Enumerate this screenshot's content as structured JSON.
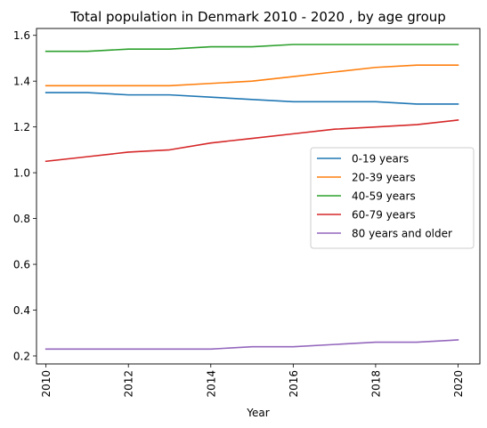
{
  "chart_data": {
    "type": "line",
    "title": "Total population in Denmark 2010 - 2020 , by age group",
    "xlabel": "Year",
    "ylabel": "",
    "x": [
      2010,
      2011,
      2012,
      2013,
      2014,
      2015,
      2016,
      2017,
      2018,
      2019,
      2020
    ],
    "xticks": [
      "2010",
      "2012",
      "2014",
      "2016",
      "2018",
      "2020"
    ],
    "yticks": [
      "0.2",
      "0.4",
      "0.6",
      "0.8",
      "1.0",
      "1.2",
      "1.4",
      "1.6"
    ],
    "ylim": [
      0.165,
      1.63
    ],
    "xlim": [
      2009.77,
      2020.53
    ],
    "grid": false,
    "legend_position": "center-right",
    "series": [
      {
        "name": "0-19 years",
        "color": "#1f77b4",
        "values": [
          1.35,
          1.35,
          1.34,
          1.34,
          1.33,
          1.32,
          1.31,
          1.31,
          1.31,
          1.3,
          1.3
        ]
      },
      {
        "name": "20-39 years",
        "color": "#ff7f0e",
        "values": [
          1.38,
          1.38,
          1.38,
          1.38,
          1.39,
          1.4,
          1.42,
          1.44,
          1.46,
          1.47,
          1.47
        ]
      },
      {
        "name": "40-59 years",
        "color": "#2ca02c",
        "values": [
          1.53,
          1.53,
          1.54,
          1.54,
          1.55,
          1.55,
          1.56,
          1.56,
          1.56,
          1.56,
          1.56
        ]
      },
      {
        "name": "60-79 years",
        "color": "#d62728",
        "values": [
          1.05,
          1.07,
          1.09,
          1.1,
          1.13,
          1.15,
          1.17,
          1.19,
          1.2,
          1.21,
          1.23
        ]
      },
      {
        "name": "80 years and older",
        "color": "#9467bd",
        "values": [
          0.23,
          0.23,
          0.23,
          0.23,
          0.23,
          0.24,
          0.24,
          0.25,
          0.26,
          0.26,
          0.27
        ]
      }
    ]
  }
}
